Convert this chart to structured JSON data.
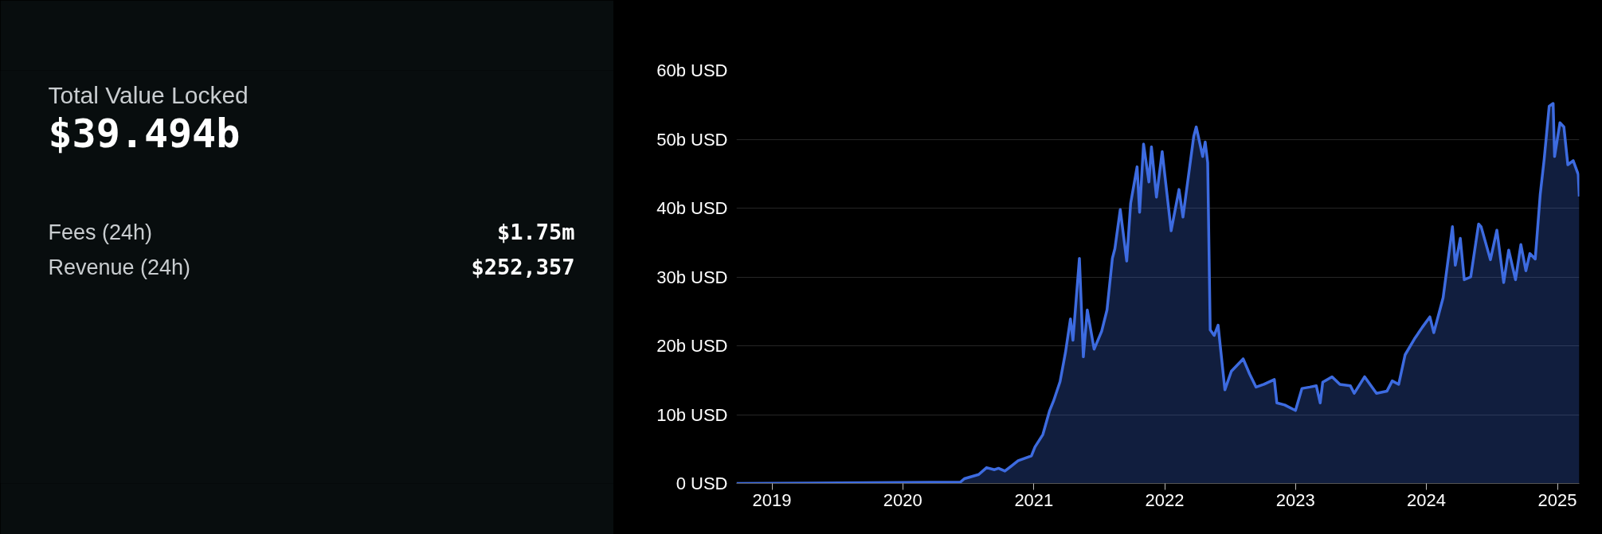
{
  "chart_data": [
    {
      "type": "other",
      "title": "Total Value Locked",
      "annotations": [
        "$39.494b",
        "Fees (24h)",
        "$1.75m",
        "Revenue (24h)",
        "$252,357"
      ]
    },
    {
      "type": "area",
      "color": "#3d6be0",
      "grid": "y",
      "x": [
        "2018-09-24",
        "2019-07-09",
        "2020-06-10",
        "2020-06-21",
        "2020-07-31",
        "2020-08-22",
        "2020-09-13",
        "2020-09-24",
        "2020-10-12",
        "2020-11-18",
        "2020-12-25",
        "2021-01-04",
        "2021-01-26",
        "2021-02-14",
        "2021-02-25",
        "2021-03-15",
        "2021-03-30",
        "2021-04-13",
        "2021-04-20",
        "2021-05-08",
        "2021-05-19",
        "2021-05-30",
        "2021-06-18",
        "2021-07-09",
        "2021-07-24",
        "2021-08-08",
        "2021-08-15",
        "2021-08-30",
        "2021-09-17",
        "2021-09-28",
        "2021-10-16",
        "2021-10-23",
        "2021-11-03",
        "2021-11-18",
        "2021-11-25",
        "2021-12-09",
        "2021-12-25",
        "2022-01-19",
        "2022-02-10",
        "2022-02-21",
        "2022-03-23",
        "2022-03-30",
        "2022-04-17",
        "2022-04-24",
        "2022-05-01",
        "2022-05-08",
        "2022-05-19",
        "2022-05-30",
        "2022-06-18",
        "2022-07-06",
        "2022-08-08",
        "2022-08-26",
        "2022-09-13",
        "2022-10-05",
        "2022-11-03",
        "2022-11-10",
        "2022-12-02",
        "2023-01-01",
        "2023-01-19",
        "2023-02-10",
        "2023-02-28",
        "2023-03-11",
        "2023-03-18",
        "2023-04-13",
        "2023-05-05",
        "2023-06-03",
        "2023-06-14",
        "2023-07-13",
        "2023-08-15",
        "2023-09-13",
        "2023-09-28",
        "2023-10-16",
        "2023-11-03",
        "2023-11-29",
        "2023-12-21",
        "2024-01-11",
        "2024-01-22",
        "2024-02-17",
        "2024-03-14",
        "2024-03-22",
        "2024-04-05",
        "2024-04-16",
        "2024-05-04",
        "2024-05-26",
        "2024-06-02",
        "2024-06-28",
        "2024-07-16",
        "2024-08-04",
        "2024-08-18",
        "2024-09-06",
        "2024-09-21",
        "2024-10-05",
        "2024-10-16",
        "2024-10-31",
        "2024-11-14",
        "2024-11-25",
        "2024-12-09",
        "2024-12-20",
        "2024-12-24",
        "2025-01-08",
        "2025-01-19",
        "2025-01-30",
        "2025-02-14",
        "2025-02-28",
        "2025-03-03"
      ],
      "values": [
        0,
        0.1,
        0.2,
        0.7,
        1.3,
        2.3,
        2.0,
        2.2,
        1.8,
        3.3,
        4.0,
        5.3,
        7.1,
        10.6,
        12.0,
        14.8,
        19.0,
        23.9,
        20.8,
        32.7,
        18.4,
        25.2,
        19.5,
        22.1,
        25.2,
        32.7,
        34.1,
        39.8,
        32.3,
        40.7,
        46.0,
        39.4,
        49.3,
        43.8,
        48.9,
        41.6,
        48.2,
        36.7,
        42.7,
        38.7,
        50.4,
        51.8,
        47.5,
        49.6,
        46.6,
        22.3,
        21.5,
        23.0,
        13.6,
        16.3,
        18.1,
        15.9,
        14.0,
        14.4,
        15.1,
        11.7,
        11.4,
        10.6,
        13.8,
        14.0,
        14.2,
        11.7,
        14.7,
        15.5,
        14.4,
        14.2,
        13.1,
        15.5,
        13.1,
        13.4,
        14.9,
        14.4,
        18.7,
        21.0,
        22.7,
        24.2,
        21.9,
        27.0,
        37.3,
        31.7,
        35.6,
        29.6,
        30.0,
        37.7,
        37.3,
        32.5,
        36.8,
        29.2,
        33.9,
        29.6,
        34.7,
        30.9,
        33.4,
        32.6,
        42.0,
        47.1,
        54.8,
        55.2,
        47.5,
        52.4,
        51.8,
        46.3,
        46.9,
        44.9,
        41.7
      ],
      "xlim": [
        "2018-09-24",
        "2025-03-03"
      ],
      "xticks": [
        "2019",
        "2020",
        "2021",
        "2022",
        "2023",
        "2024",
        "2025"
      ],
      "ylim": [
        0,
        60
      ],
      "yticks": [
        {
          "value": 0,
          "label": "0 USD"
        },
        {
          "value": 10,
          "label": "10b USD"
        },
        {
          "value": 20,
          "label": "20b USD"
        },
        {
          "value": 30,
          "label": "30b USD"
        },
        {
          "value": 40,
          "label": "40b USD"
        },
        {
          "value": 50,
          "label": "50b USD"
        },
        {
          "value": 60,
          "label": "60b USD"
        }
      ]
    }
  ]
}
